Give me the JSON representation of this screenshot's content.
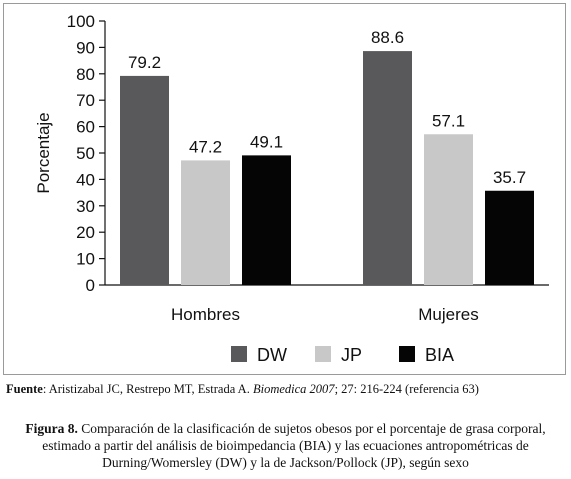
{
  "chart_data": {
    "type": "bar",
    "categories": [
      "Hombres",
      "Mujeres"
    ],
    "series": [
      {
        "name": "DW",
        "values": [
          79.2,
          88.6
        ],
        "color": "#59595b"
      },
      {
        "name": "JP",
        "values": [
          47.2,
          57.1
        ],
        "color": "#c8c8c8"
      },
      {
        "name": "BIA",
        "values": [
          49.1,
          35.7
        ],
        "color": "#050505"
      }
    ],
    "ylabel": "Porcentaje",
    "ylim": [
      0,
      100
    ],
    "yticks": [
      0,
      10,
      20,
      30,
      40,
      50,
      60,
      70,
      80,
      90,
      100
    ],
    "data_labels": [
      "79.2",
      "47.2",
      "49.1",
      "88.6",
      "57.1",
      "35.7"
    ],
    "grid": false,
    "legend_position": "bottom"
  },
  "source": {
    "label": "Fuente",
    "text_before": ": Aristizabal JC, Restrepo MT, Estrada A. ",
    "journal": "Biomedica 2007",
    "text_after": "; 27: 216-224 (referencia 63)"
  },
  "caption": {
    "label": "Figura 8.",
    "text": " Comparación de la clasificación de sujetos obesos por el porcentaje de grasa corporal, estimado a partir del análisis de bioimpedancia (BIA) y las ecuaciones antropométricas de Durning/Womersley (DW) y la de Jackson/Pollock (JP), según sexo"
  }
}
